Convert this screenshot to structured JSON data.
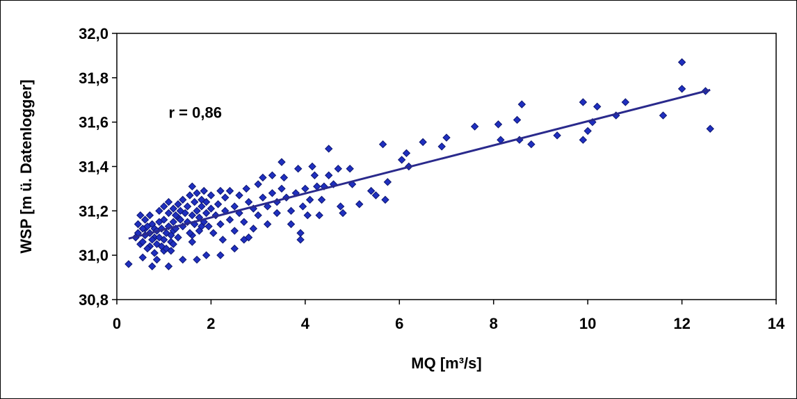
{
  "chart_data": {
    "type": "scatter",
    "xlabel": "MQ [m³/s]",
    "ylabel": "WSP [m ü. Datenlogger]",
    "xlim": [
      0,
      14
    ],
    "ylim": [
      30.8,
      32.0
    ],
    "x_ticks": [
      "0",
      "2",
      "4",
      "6",
      "8",
      "10",
      "12",
      "14"
    ],
    "y_ticks": [
      "30,8",
      "31,0",
      "31,2",
      "31,4",
      "31,6",
      "31,8",
      "32,0"
    ],
    "grid": false,
    "legend": "none",
    "annotation": "r = 0,86",
    "marker": "diamond",
    "colors": {
      "marker_fill": "#1f2fbf",
      "marker_edge": "#0c1570",
      "trendline": "#2a2a8c"
    },
    "trendline": {
      "x": [
        0.25,
        12.6
      ],
      "y": [
        31.075,
        31.745
      ]
    },
    "series": [
      {
        "points": [
          [
            0.25,
            30.96
          ],
          [
            0.45,
            31.1
          ],
          [
            0.5,
            31.05
          ],
          [
            0.55,
            30.99
          ],
          [
            0.6,
            31.12
          ],
          [
            0.7,
            31.04
          ],
          [
            0.75,
            30.95
          ],
          [
            0.8,
            31.08
          ],
          [
            0.85,
            30.98
          ],
          [
            0.9,
            31.15
          ],
          [
            1.0,
            31.02
          ],
          [
            1.1,
            30.95
          ],
          [
            1.15,
            31.06
          ],
          [
            1.2,
            31.11
          ],
          [
            1.3,
            31.17
          ],
          [
            1.4,
            30.98
          ],
          [
            1.6,
            31.09
          ],
          [
            1.7,
            30.98
          ],
          [
            1.8,
            31.13
          ],
          [
            1.9,
            31.0
          ],
          [
            2.2,
            31.0
          ],
          [
            2.5,
            31.03
          ],
          [
            2.7,
            31.07
          ],
          [
            0.4,
            31.08
          ],
          [
            0.45,
            31.14
          ],
          [
            0.5,
            31.18
          ],
          [
            0.55,
            31.12
          ],
          [
            0.55,
            31.06
          ],
          [
            0.6,
            31.16
          ],
          [
            0.6,
            31.09
          ],
          [
            0.65,
            31.03
          ],
          [
            0.65,
            31.13
          ],
          [
            0.7,
            31.18
          ],
          [
            0.7,
            31.1
          ],
          [
            0.75,
            31.07
          ],
          [
            0.75,
            31.14
          ],
          [
            0.8,
            31.01
          ],
          [
            0.8,
            31.12
          ],
          [
            0.85,
            31.05
          ],
          [
            0.85,
            31.11
          ],
          [
            0.9,
            31.08
          ],
          [
            0.9,
            31.2
          ],
          [
            0.95,
            31.04
          ],
          [
            0.95,
            31.12
          ],
          [
            1.0,
            31.07
          ],
          [
            1.0,
            31.16
          ],
          [
            1.0,
            31.22
          ],
          [
            1.05,
            31.1
          ],
          [
            1.05,
            31.03
          ],
          [
            1.1,
            31.13
          ],
          [
            1.1,
            31.19
          ],
          [
            1.1,
            31.24
          ],
          [
            1.15,
            31.09
          ],
          [
            1.15,
            31.02
          ],
          [
            1.2,
            31.15
          ],
          [
            1.2,
            31.21
          ],
          [
            1.2,
            31.05
          ],
          [
            1.25,
            31.18
          ],
          [
            1.25,
            31.12
          ],
          [
            1.3,
            31.23
          ],
          [
            1.3,
            31.08
          ],
          [
            1.35,
            31.16
          ],
          [
            1.35,
            31.2
          ],
          [
            1.4,
            31.13
          ],
          [
            1.4,
            31.25
          ],
          [
            1.45,
            31.19
          ],
          [
            1.5,
            31.15
          ],
          [
            1.5,
            31.22
          ],
          [
            1.55,
            31.1
          ],
          [
            1.55,
            31.27
          ],
          [
            1.6,
            31.31
          ],
          [
            1.6,
            31.18
          ],
          [
            1.6,
            31.06
          ],
          [
            1.65,
            31.24
          ],
          [
            1.65,
            31.14
          ],
          [
            1.7,
            31.2
          ],
          [
            1.7,
            31.28
          ],
          [
            1.75,
            31.11
          ],
          [
            1.75,
            31.17
          ],
          [
            1.8,
            31.25
          ],
          [
            1.8,
            31.22
          ],
          [
            1.85,
            31.15
          ],
          [
            1.85,
            31.29
          ],
          [
            1.9,
            31.19
          ],
          [
            1.9,
            31.24
          ],
          [
            1.95,
            31.13
          ],
          [
            2.0,
            31.21
          ],
          [
            2.0,
            31.27
          ],
          [
            2.05,
            31.1
          ],
          [
            2.1,
            31.18
          ],
          [
            2.15,
            31.23
          ],
          [
            2.2,
            31.29
          ],
          [
            2.2,
            31.14
          ],
          [
            2.25,
            31.07
          ],
          [
            2.3,
            31.2
          ],
          [
            2.3,
            31.26
          ],
          [
            2.4,
            31.16
          ],
          [
            2.4,
            31.29
          ],
          [
            2.5,
            31.22
          ],
          [
            2.5,
            31.11
          ],
          [
            2.6,
            31.27
          ],
          [
            2.6,
            31.19
          ],
          [
            2.7,
            31.15
          ],
          [
            2.75,
            31.3
          ],
          [
            2.8,
            31.24
          ],
          [
            2.8,
            31.08
          ],
          [
            2.9,
            31.21
          ],
          [
            2.9,
            31.12
          ],
          [
            3.0,
            31.32
          ],
          [
            3.0,
            31.18
          ],
          [
            3.1,
            31.26
          ],
          [
            3.1,
            31.35
          ],
          [
            3.2,
            31.22
          ],
          [
            3.2,
            31.14
          ],
          [
            3.3,
            31.36
          ],
          [
            3.3,
            31.28
          ],
          [
            3.4,
            31.19
          ],
          [
            3.4,
            31.24
          ],
          [
            3.5,
            31.42
          ],
          [
            3.5,
            31.3
          ],
          [
            3.55,
            31.35
          ],
          [
            3.6,
            31.26
          ],
          [
            3.7,
            31.2
          ],
          [
            3.7,
            31.14
          ],
          [
            3.8,
            31.28
          ],
          [
            3.85,
            31.39
          ],
          [
            3.9,
            31.07
          ],
          [
            3.9,
            31.1
          ],
          [
            3.95,
            31.22
          ],
          [
            4.0,
            31.3
          ],
          [
            4.05,
            31.18
          ],
          [
            4.1,
            31.25
          ],
          [
            4.15,
            31.4
          ],
          [
            4.2,
            31.36
          ],
          [
            4.25,
            31.31
          ],
          [
            4.3,
            31.18
          ],
          [
            4.35,
            31.25
          ],
          [
            4.4,
            31.31
          ],
          [
            4.5,
            31.36
          ],
          [
            4.5,
            31.48
          ],
          [
            4.6,
            31.32
          ],
          [
            4.7,
            31.39
          ],
          [
            4.75,
            31.22
          ],
          [
            4.8,
            31.19
          ],
          [
            4.95,
            31.39
          ],
          [
            5.0,
            31.32
          ],
          [
            5.15,
            31.23
          ],
          [
            5.4,
            31.29
          ],
          [
            5.5,
            31.27
          ],
          [
            5.65,
            31.5
          ],
          [
            5.7,
            31.25
          ],
          [
            5.75,
            31.33
          ],
          [
            6.05,
            31.43
          ],
          [
            6.15,
            31.46
          ],
          [
            6.2,
            31.4
          ],
          [
            6.5,
            31.51
          ],
          [
            6.9,
            31.49
          ],
          [
            7.0,
            31.53
          ],
          [
            7.6,
            31.58
          ],
          [
            8.1,
            31.59
          ],
          [
            8.15,
            31.52
          ],
          [
            8.5,
            31.61
          ],
          [
            8.55,
            31.52
          ],
          [
            8.6,
            31.68
          ],
          [
            8.8,
            31.5
          ],
          [
            9.35,
            31.54
          ],
          [
            9.9,
            31.69
          ],
          [
            9.9,
            31.52
          ],
          [
            10.0,
            31.56
          ],
          [
            10.1,
            31.6
          ],
          [
            10.2,
            31.67
          ],
          [
            10.6,
            31.63
          ],
          [
            10.8,
            31.69
          ],
          [
            11.6,
            31.63
          ],
          [
            12.0,
            31.87
          ],
          [
            12.0,
            31.75
          ],
          [
            12.5,
            31.74
          ],
          [
            12.6,
            31.57
          ]
        ]
      }
    ]
  }
}
